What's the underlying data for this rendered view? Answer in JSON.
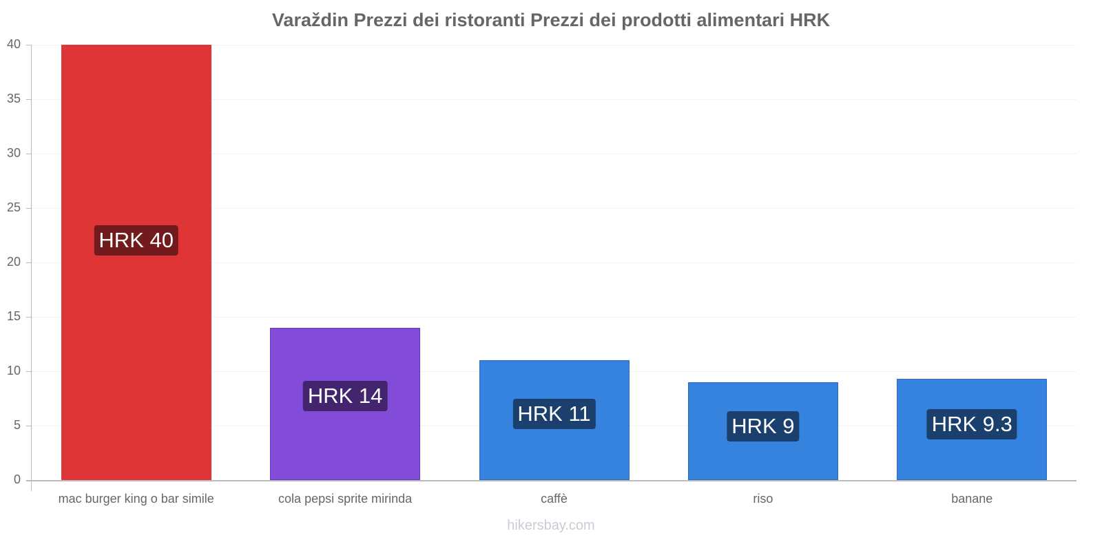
{
  "chart_data": {
    "type": "bar",
    "title": "Varaždin Prezzi dei ristoranti Prezzi dei prodotti alimentari HRK",
    "xlabel": "",
    "ylabel": "",
    "ylim": [
      0,
      40
    ],
    "yticks": [
      0,
      5,
      10,
      15,
      20,
      25,
      30,
      35,
      40
    ],
    "grid": true,
    "legend": null,
    "categories": [
      "mac burger king o bar simile",
      "cola pepsi sprite mirinda",
      "caffè",
      "riso",
      "banane"
    ],
    "values": [
      40,
      14,
      11,
      9,
      9.3
    ],
    "data_labels": [
      "HRK 40",
      "HRK 14",
      "HRK 11",
      "HRK 9",
      "HRK 9.3"
    ],
    "bar_colors": [
      "#e03537",
      "#824bd8",
      "#3583de",
      "#3583de",
      "#3583de"
    ],
    "label_colors": [
      "#731b1c",
      "#42246f",
      "#1c406e",
      "#1c406e",
      "#1c406e"
    ]
  },
  "watermark": "hikersbay.com"
}
